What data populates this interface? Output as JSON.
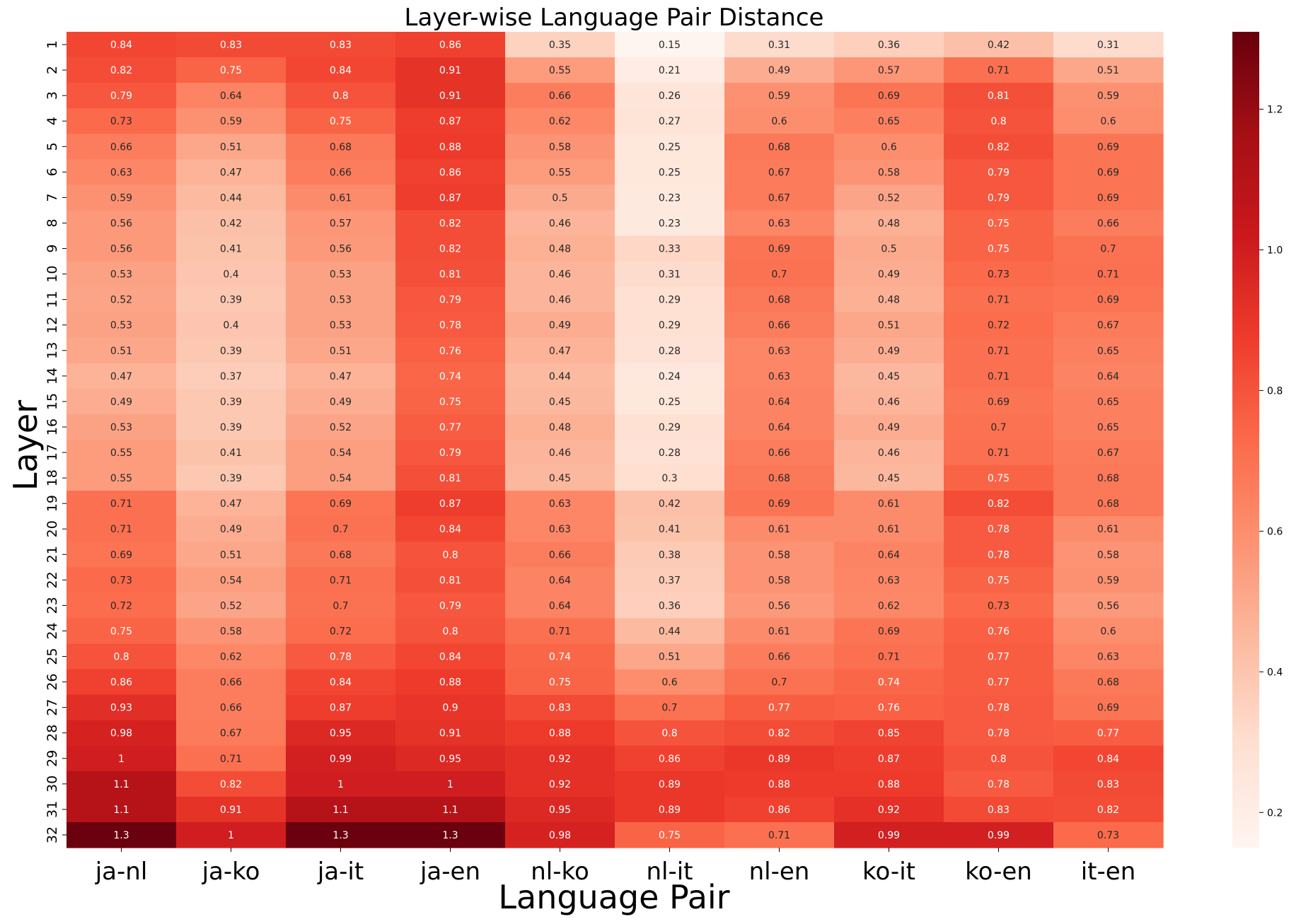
{
  "chart_data": {
    "type": "heatmap",
    "title": "Layer-wise Language Pair Distance",
    "xlabel": "Language Pair",
    "ylabel": "Layer",
    "columns": [
      "ja-nl",
      "ja-ko",
      "ja-it",
      "ja-en",
      "nl-ko",
      "nl-it",
      "nl-en",
      "ko-it",
      "ko-en",
      "it-en"
    ],
    "rows": [
      "1",
      "2",
      "3",
      "4",
      "5",
      "6",
      "7",
      "8",
      "9",
      "10",
      "11",
      "12",
      "13",
      "14",
      "15",
      "16",
      "17",
      "18",
      "19",
      "20",
      "21",
      "22",
      "23",
      "24",
      "25",
      "26",
      "27",
      "28",
      "29",
      "30",
      "31",
      "32"
    ],
    "values": [
      [
        0.84,
        0.83,
        0.83,
        0.86,
        0.35,
        0.15,
        0.31,
        0.36,
        0.42,
        0.31
      ],
      [
        0.82,
        0.75,
        0.84,
        0.91,
        0.55,
        0.21,
        0.49,
        0.57,
        0.71,
        0.51
      ],
      [
        0.79,
        0.64,
        0.8,
        0.91,
        0.66,
        0.26,
        0.59,
        0.69,
        0.81,
        0.59
      ],
      [
        0.73,
        0.59,
        0.75,
        0.87,
        0.62,
        0.27,
        0.6,
        0.65,
        0.8,
        0.6
      ],
      [
        0.66,
        0.51,
        0.68,
        0.88,
        0.58,
        0.25,
        0.68,
        0.6,
        0.82,
        0.69
      ],
      [
        0.63,
        0.47,
        0.66,
        0.86,
        0.55,
        0.25,
        0.67,
        0.58,
        0.79,
        0.69
      ],
      [
        0.59,
        0.44,
        0.61,
        0.87,
        0.5,
        0.23,
        0.67,
        0.52,
        0.79,
        0.69
      ],
      [
        0.56,
        0.42,
        0.57,
        0.82,
        0.46,
        0.23,
        0.63,
        0.48,
        0.75,
        0.66
      ],
      [
        0.56,
        0.41,
        0.56,
        0.82,
        0.48,
        0.33,
        0.69,
        0.5,
        0.75,
        0.7
      ],
      [
        0.53,
        0.4,
        0.53,
        0.81,
        0.46,
        0.31,
        0.7,
        0.49,
        0.73,
        0.71
      ],
      [
        0.52,
        0.39,
        0.53,
        0.79,
        0.46,
        0.29,
        0.68,
        0.48,
        0.71,
        0.69
      ],
      [
        0.53,
        0.4,
        0.53,
        0.78,
        0.49,
        0.29,
        0.66,
        0.51,
        0.72,
        0.67
      ],
      [
        0.51,
        0.39,
        0.51,
        0.76,
        0.47,
        0.28,
        0.63,
        0.49,
        0.71,
        0.65
      ],
      [
        0.47,
        0.37,
        0.47,
        0.74,
        0.44,
        0.24,
        0.63,
        0.45,
        0.71,
        0.64
      ],
      [
        0.49,
        0.39,
        0.49,
        0.75,
        0.45,
        0.25,
        0.64,
        0.46,
        0.69,
        0.65
      ],
      [
        0.53,
        0.39,
        0.52,
        0.77,
        0.48,
        0.29,
        0.64,
        0.49,
        0.7,
        0.65
      ],
      [
        0.55,
        0.41,
        0.54,
        0.79,
        0.46,
        0.28,
        0.66,
        0.46,
        0.71,
        0.67
      ],
      [
        0.55,
        0.39,
        0.54,
        0.81,
        0.45,
        0.3,
        0.68,
        0.45,
        0.75,
        0.68
      ],
      [
        0.71,
        0.47,
        0.69,
        0.87,
        0.63,
        0.42,
        0.69,
        0.61,
        0.82,
        0.68
      ],
      [
        0.71,
        0.49,
        0.7,
        0.84,
        0.63,
        0.41,
        0.61,
        0.61,
        0.78,
        0.61
      ],
      [
        0.69,
        0.51,
        0.68,
        0.8,
        0.66,
        0.38,
        0.58,
        0.64,
        0.78,
        0.58
      ],
      [
        0.73,
        0.54,
        0.71,
        0.81,
        0.64,
        0.37,
        0.58,
        0.63,
        0.75,
        0.59
      ],
      [
        0.72,
        0.52,
        0.7,
        0.79,
        0.64,
        0.36,
        0.56,
        0.62,
        0.73,
        0.56
      ],
      [
        0.75,
        0.58,
        0.72,
        0.8,
        0.71,
        0.44,
        0.61,
        0.69,
        0.76,
        0.6
      ],
      [
        0.8,
        0.62,
        0.78,
        0.84,
        0.74,
        0.51,
        0.66,
        0.71,
        0.77,
        0.63
      ],
      [
        0.86,
        0.66,
        0.84,
        0.88,
        0.75,
        0.6,
        0.7,
        0.74,
        0.77,
        0.68
      ],
      [
        0.93,
        0.66,
        0.87,
        0.9,
        0.83,
        0.7,
        0.77,
        0.76,
        0.78,
        0.69
      ],
      [
        0.98,
        0.67,
        0.95,
        0.91,
        0.88,
        0.8,
        0.82,
        0.85,
        0.78,
        0.77
      ],
      [
        1,
        0.71,
        0.99,
        0.95,
        0.92,
        0.86,
        0.89,
        0.87,
        0.8,
        0.84
      ],
      [
        1.1,
        0.82,
        1,
        1,
        0.92,
        0.89,
        0.88,
        0.88,
        0.78,
        0.83
      ],
      [
        1.1,
        0.91,
        1.1,
        1.1,
        0.95,
        0.89,
        0.86,
        0.92,
        0.83,
        0.82
      ],
      [
        1.3,
        1,
        1.3,
        1.3,
        0.98,
        0.75,
        0.71,
        0.99,
        0.99,
        0.73
      ]
    ],
    "colorbar": {
      "colormap": "Reds",
      "vmin": 0.15,
      "vmax": 1.31,
      "ticks": [
        0.2,
        0.4,
        0.6,
        0.8,
        1.0,
        1.2
      ],
      "tick_labels": [
        "0.2",
        "0.4",
        "0.6",
        "0.8",
        "1.0",
        "1.2"
      ]
    },
    "grid": false,
    "annotations": "cell values printed in each cell"
  }
}
